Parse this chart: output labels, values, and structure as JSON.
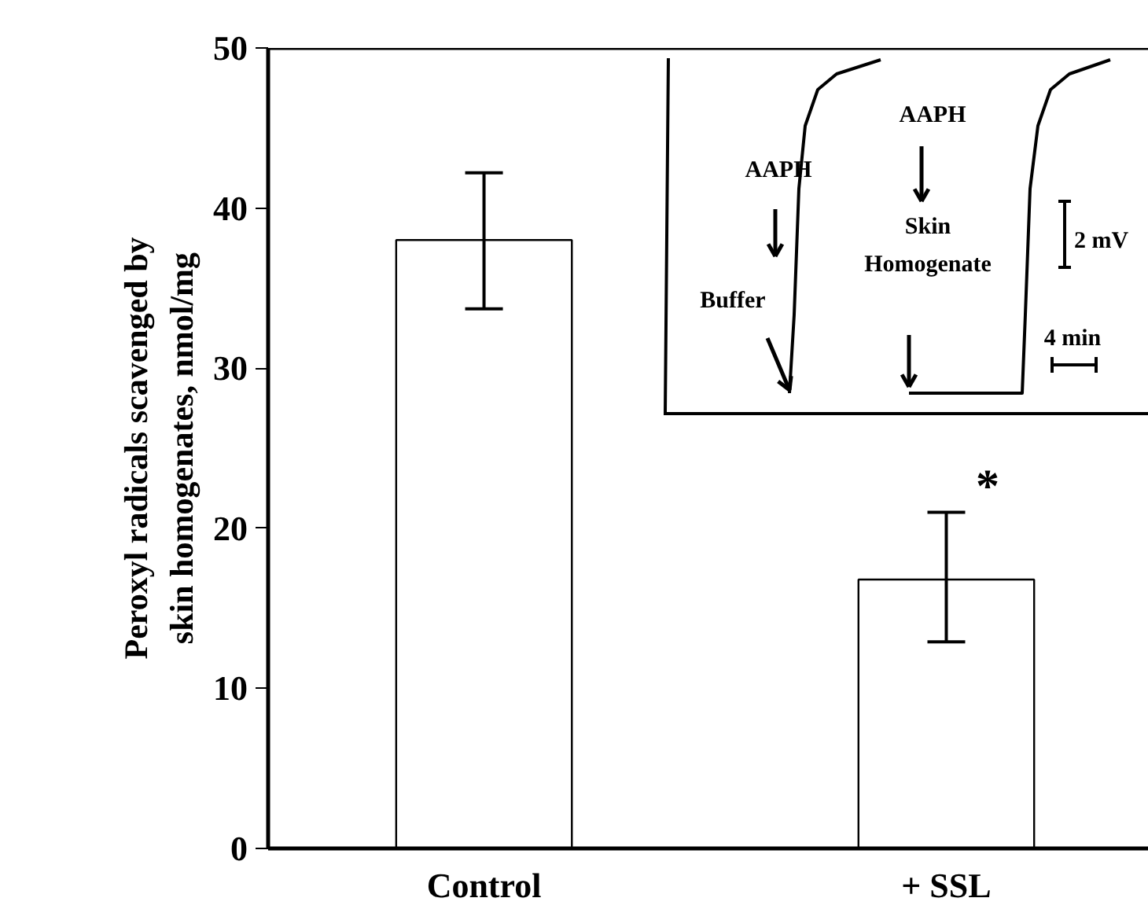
{
  "chart_data": {
    "type": "bar",
    "ylabel": "Peroxyl radicals scavenged by\nskin homogenates, nmol/mg",
    "categories": [
      "Control",
      "+ SSL"
    ],
    "values": [
      38,
      16.8
    ],
    "errors": [
      [
        33.7,
        42.2
      ],
      [
        12.9,
        21.0
      ]
    ],
    "color": "#ffffff",
    "ylim": [
      0,
      50
    ],
    "yticks": [
      0,
      10,
      20,
      30,
      40,
      50
    ],
    "grid": false,
    "annotations": [
      "*",
      "AAPH",
      "Buffer",
      "AAPH",
      "Skin\nHomogenate",
      "2 mV",
      "4 min"
    ]
  }
}
